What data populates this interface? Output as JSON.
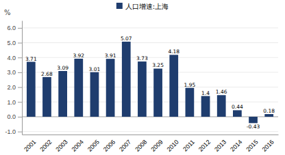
{
  "chart_data": {
    "type": "bar",
    "ylabel": "%",
    "categories": [
      "2001",
      "2002",
      "2003",
      "2004",
      "2005",
      "2006",
      "2007",
      "2008",
      "2009",
      "2010",
      "2011",
      "2012",
      "2013",
      "2014",
      "2015",
      "2016"
    ],
    "series": [
      {
        "name": "人口增速:上海",
        "color": "#1f3d6e",
        "values": [
          3.71,
          2.68,
          3.09,
          3.92,
          3.01,
          3.91,
          5.07,
          3.73,
          3.25,
          4.18,
          1.95,
          1.4,
          1.46,
          0.44,
          -0.43,
          0.18
        ]
      }
    ],
    "ylim": [
      -1.2,
      6.5
    ],
    "yticks": [
      {
        "value": -1,
        "label": "-1.0"
      },
      {
        "value": 0,
        "label": "0.0"
      },
      {
        "value": 1,
        "label": "1.0"
      },
      {
        "value": 2,
        "label": "2.0"
      },
      {
        "value": 3,
        "label": "3.0"
      },
      {
        "value": 4,
        "label": "4.0"
      },
      {
        "value": 5,
        "label": "5.0"
      },
      {
        "value": 6,
        "label": "6.0"
      }
    ],
    "grid": true,
    "legend": "top",
    "data_labels": true
  }
}
